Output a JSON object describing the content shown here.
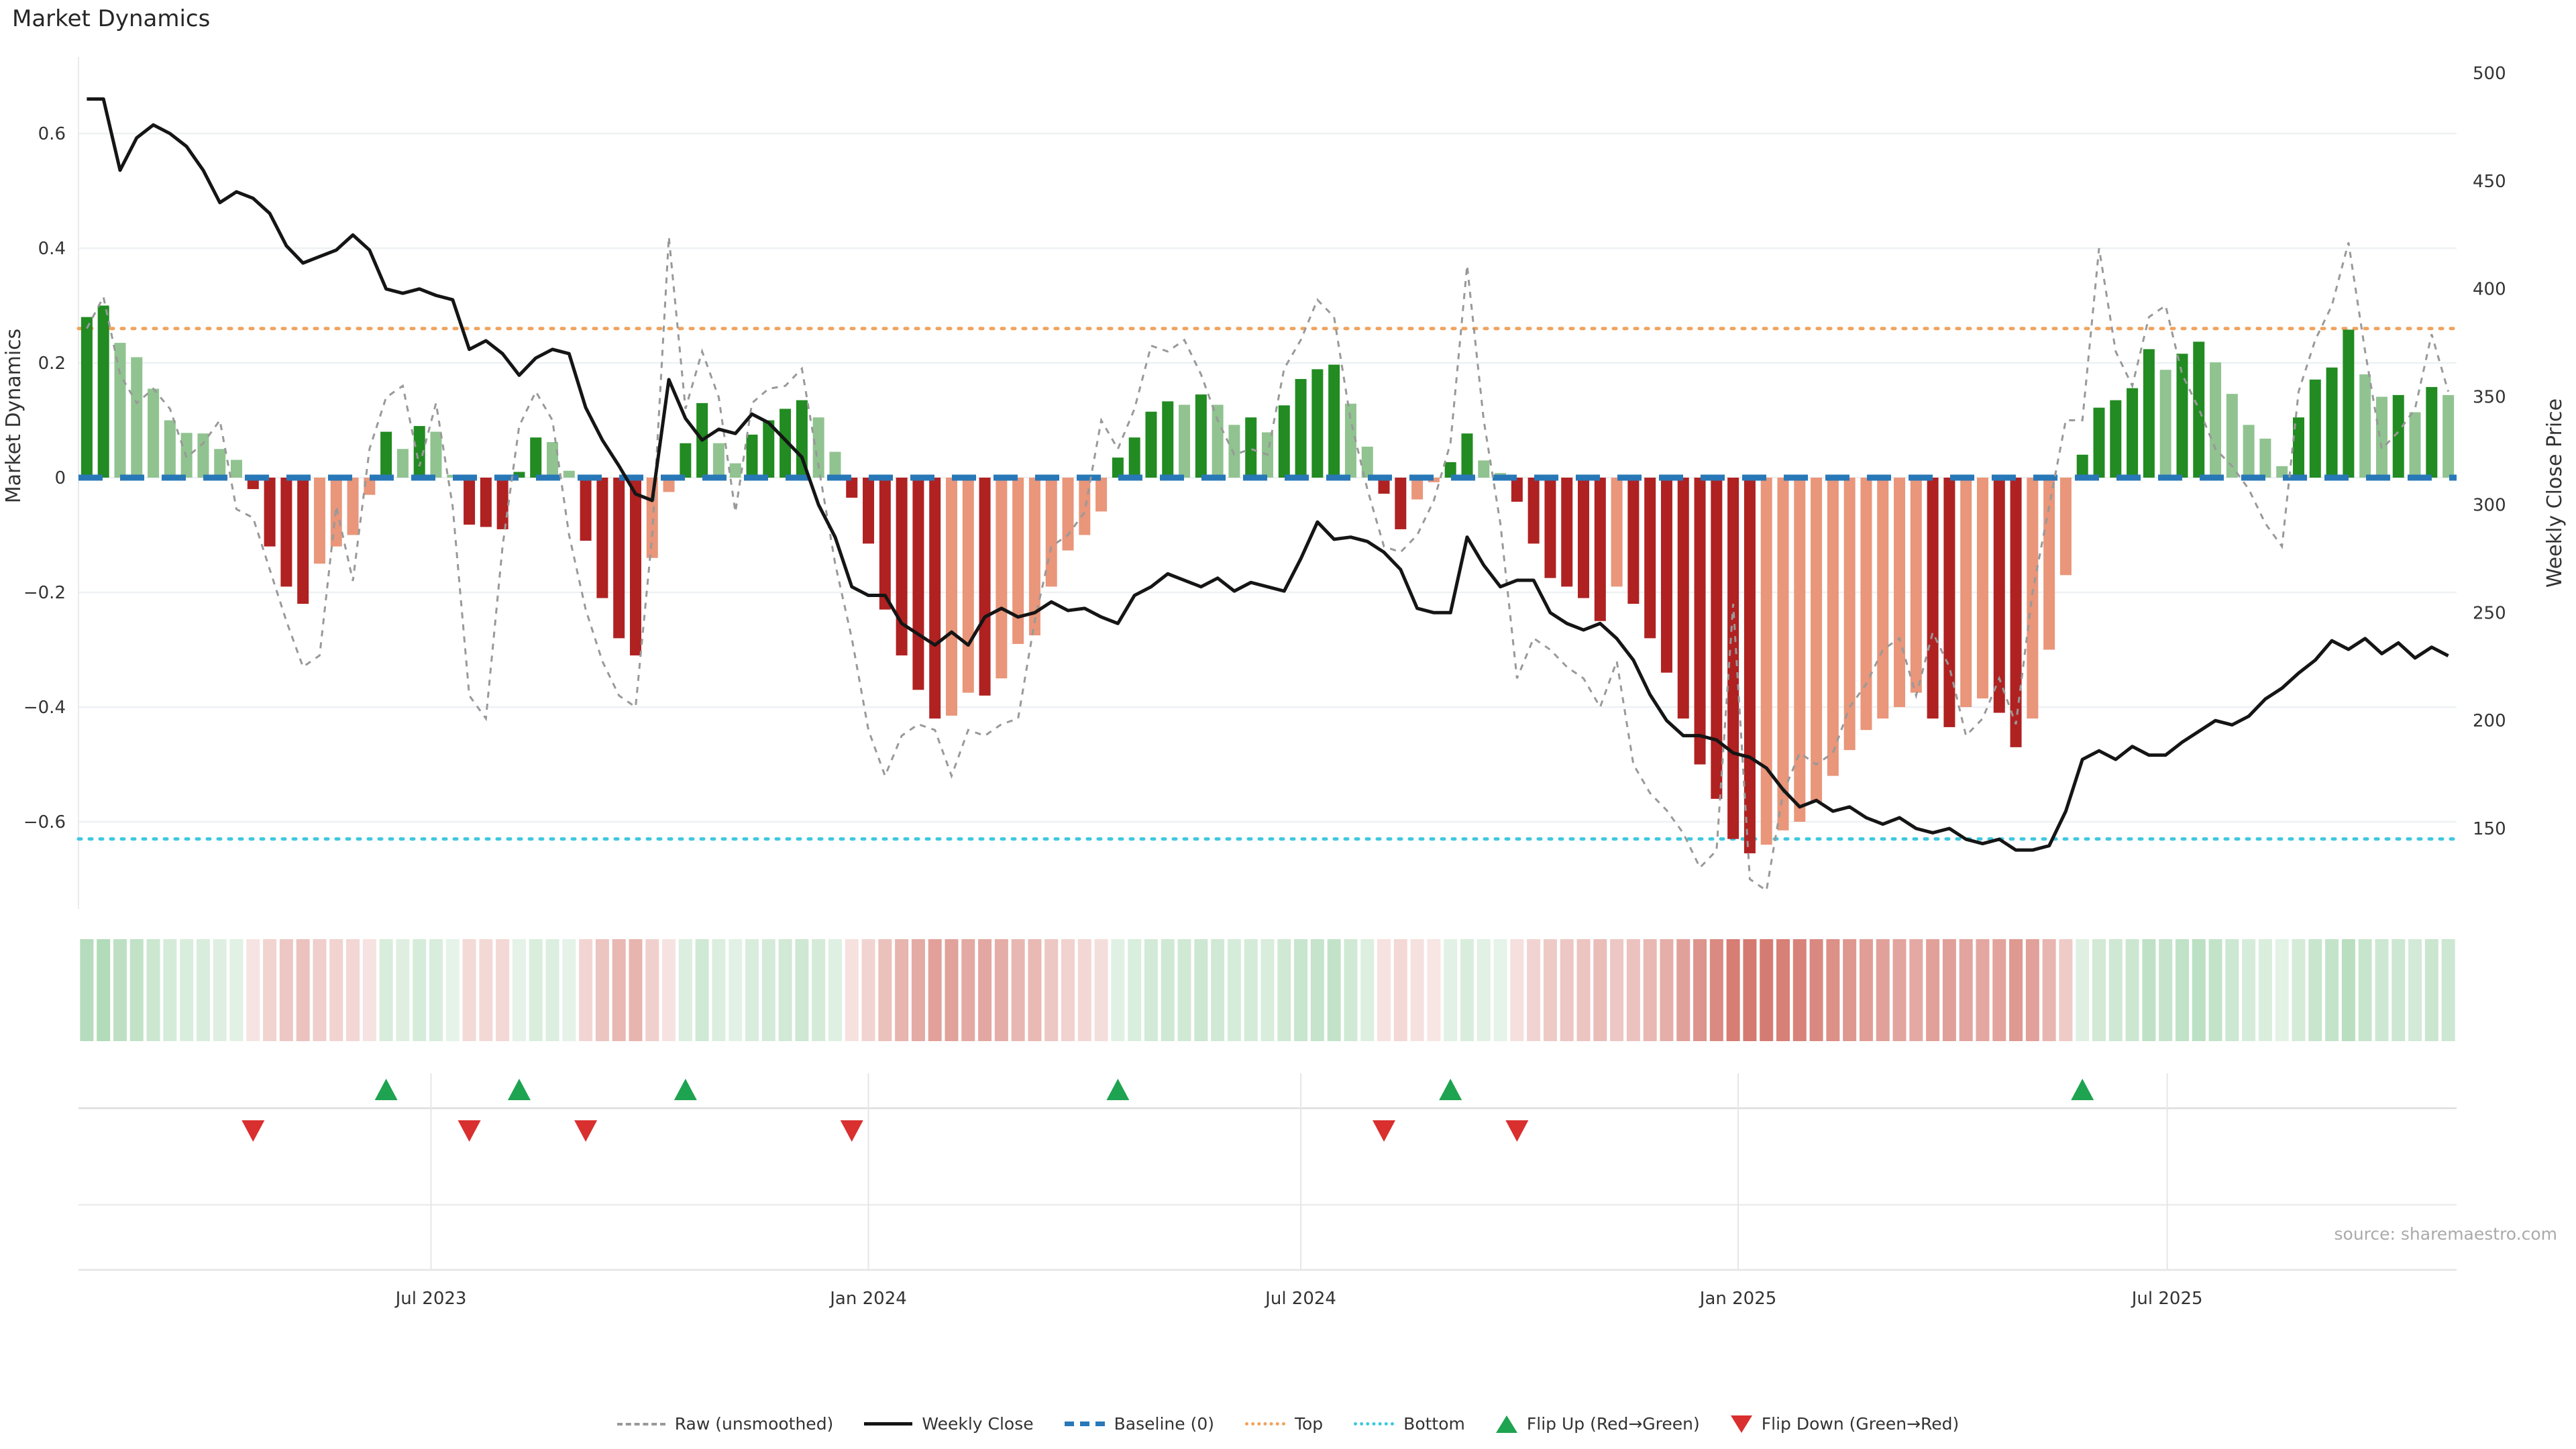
{
  "title": "Market Dynamics",
  "source": "source: sharemaestro.com",
  "axes": {
    "left_label": "Market Dynamics",
    "right_label": "Weekly Close Price",
    "left_ticks": [
      {
        "label": "0.6",
        "value": 0.6
      },
      {
        "label": "0.4",
        "value": 0.4
      },
      {
        "label": "0.2",
        "value": 0.2
      },
      {
        "label": "0",
        "value": 0
      },
      {
        "label": "−0.2",
        "value": -0.2
      },
      {
        "label": "−0.4",
        "value": -0.4
      },
      {
        "label": "−0.6",
        "value": -0.6
      }
    ],
    "right_ticks": [
      {
        "label": "500",
        "value": 500
      },
      {
        "label": "450",
        "value": 450
      },
      {
        "label": "400",
        "value": 400
      },
      {
        "label": "350",
        "value": 350
      },
      {
        "label": "300",
        "value": 300
      },
      {
        "label": "250",
        "value": 250
      },
      {
        "label": "200",
        "value": 200
      },
      {
        "label": "150",
        "value": 150
      }
    ],
    "x_ticks": [
      {
        "label": "Jul 2023",
        "week": 21.2
      },
      {
        "label": "Jan 2024",
        "week": 47.5
      },
      {
        "label": "Jul 2024",
        "week": 73.5
      },
      {
        "label": "Jan 2025",
        "week": 99.8
      },
      {
        "label": "Jul 2025",
        "week": 125.6
      }
    ]
  },
  "legend": {
    "items": [
      {
        "label": "Raw (unsmoothed)",
        "type": "raw"
      },
      {
        "label": "Weekly Close",
        "type": "close"
      },
      {
        "label": "Baseline (0)",
        "type": "baseline"
      },
      {
        "label": "Top",
        "type": "top"
      },
      {
        "label": "Bottom",
        "type": "bottom"
      },
      {
        "label": "Flip Up (Red→Green)",
        "type": "flip-up"
      },
      {
        "label": "Flip Down (Green→Red)",
        "type": "flip-down"
      }
    ]
  },
  "colors": {
    "bar_up_strong": "#228b22",
    "bar_up_weak": "#90c390",
    "bar_down_strong": "#b02121",
    "bar_down_weak": "#e9967a",
    "close_line": "#151515",
    "raw_line": "#999999",
    "baseline": "#2878b8",
    "top_line": "#f0a35e",
    "bottom_line": "#3fc8de",
    "flip_up": "#1ea350",
    "flip_down": "#d92f2f",
    "heat_up": "#2f9e44",
    "heat_down": "#c0392b",
    "grid": "#eef1f4",
    "panel_line": "#dddddd",
    "tick_text": "#333333"
  },
  "chart_data": {
    "type": "combo",
    "title": "Market Dynamics",
    "x_start_date": "2023-02-06",
    "x_frequency": "weekly",
    "weeks": 143,
    "baseline": 0,
    "top_threshold": 0.26,
    "bottom_threshold": -0.63,
    "left_axis_range": [
      -0.775,
      0.75
    ],
    "right_axis_range": [
      150,
      500
    ],
    "grid": "horizontal-only",
    "legend_position": "bottom-center",
    "series": [
      {
        "name": "Market Dynamics",
        "type": "bar",
        "axis": "left",
        "color_rule": "dark-green rising positive, light-green fading positive, dark-red deepening negative, salmon recovering negative",
        "values": [
          0.28,
          0.3,
          0.235,
          0.21,
          0.155,
          0.1,
          0.078,
          0.077,
          0.05,
          0.031,
          -0.02,
          -0.12,
          -0.19,
          -0.22,
          -0.15,
          -0.12,
          -0.1,
          -0.03,
          0.08,
          0.05,
          0.09,
          0.08,
          0.005,
          -0.082,
          -0.086,
          -0.09,
          0.01,
          0.07,
          0.062,
          0.012,
          -0.11,
          -0.21,
          -0.28,
          -0.31,
          -0.14,
          -0.025,
          0.06,
          0.13,
          0.06,
          0.025,
          0.075,
          0.1,
          0.12,
          0.135,
          0.105,
          0.045,
          -0.035,
          -0.115,
          -0.23,
          -0.31,
          -0.37,
          -0.42,
          -0.415,
          -0.375,
          -0.38,
          -0.35,
          -0.29,
          -0.275,
          -0.19,
          -0.127,
          -0.1,
          -0.059,
          0.035,
          0.07,
          0.115,
          0.133,
          0.127,
          0.145,
          0.127,
          0.092,
          0.105,
          0.079,
          0.126,
          0.172,
          0.189,
          0.197,
          0.129,
          0.054,
          -0.028,
          -0.09,
          -0.038,
          -0.008,
          0.027,
          0.077,
          0.03,
          0.008,
          -0.042,
          -0.115,
          -0.175,
          -0.19,
          -0.21,
          -0.25,
          -0.19,
          -0.22,
          -0.28,
          -0.34,
          -0.42,
          -0.5,
          -0.56,
          -0.63,
          -0.655,
          -0.64,
          -0.615,
          -0.6,
          -0.565,
          -0.52,
          -0.475,
          -0.44,
          -0.42,
          -0.4,
          -0.375,
          -0.42,
          -0.435,
          -0.4,
          -0.385,
          -0.41,
          -0.47,
          -0.42,
          -0.3,
          -0.17,
          0.04,
          0.122,
          0.135,
          0.156,
          0.224,
          0.188,
          0.216,
          0.237,
          0.201,
          0.146,
          0.092,
          0.068,
          0.02,
          0.105,
          0.171,
          0.192,
          0.258,
          0.18,
          0.141,
          0.144,
          0.114,
          0.158,
          0.144
        ]
      },
      {
        "name": "Raw (unsmoothed)",
        "type": "line",
        "style": "dashed",
        "axis": "left",
        "values": [
          0.26,
          0.315,
          0.18,
          0.13,
          0.155,
          0.12,
          0.035,
          0.06,
          0.1,
          -0.055,
          -0.07,
          -0.16,
          -0.25,
          -0.33,
          -0.31,
          -0.05,
          -0.18,
          0.05,
          0.14,
          0.16,
          0.02,
          0.13,
          -0.05,
          -0.38,
          -0.42,
          -0.12,
          0.09,
          0.15,
          0.1,
          -0.1,
          -0.23,
          -0.32,
          -0.38,
          -0.4,
          -0.1,
          0.42,
          0.12,
          0.22,
          0.14,
          -0.06,
          0.13,
          0.155,
          0.16,
          0.19,
          0.02,
          -0.15,
          -0.28,
          -0.44,
          -0.52,
          -0.45,
          -0.43,
          -0.44,
          -0.52,
          -0.44,
          -0.45,
          -0.43,
          -0.42,
          -0.25,
          -0.12,
          -0.1,
          -0.06,
          0.1,
          0.05,
          0.12,
          0.23,
          0.22,
          0.24,
          0.18,
          0.1,
          0.04,
          0.05,
          0.04,
          0.19,
          0.24,
          0.31,
          0.28,
          0.1,
          -0.02,
          -0.12,
          -0.13,
          -0.1,
          -0.04,
          0.06,
          0.37,
          0.1,
          -0.08,
          -0.35,
          -0.28,
          -0.3,
          -0.33,
          -0.35,
          -0.4,
          -0.32,
          -0.5,
          -0.55,
          -0.58,
          -0.62,
          -0.68,
          -0.65,
          -0.22,
          -0.7,
          -0.72,
          -0.55,
          -0.48,
          -0.5,
          -0.48,
          -0.4,
          -0.36,
          -0.3,
          -0.28,
          -0.38,
          -0.27,
          -0.33,
          -0.45,
          -0.42,
          -0.35,
          -0.43,
          -0.2,
          -0.05,
          0.1,
          0.1,
          0.4,
          0.22,
          0.16,
          0.28,
          0.3,
          0.18,
          0.12,
          0.05,
          0.02,
          -0.02,
          -0.08,
          -0.12,
          0.15,
          0.24,
          0.3,
          0.41,
          0.22,
          0.05,
          0.08,
          0.12,
          0.25,
          0.15
        ]
      },
      {
        "name": "Weekly Close",
        "type": "line",
        "style": "solid",
        "axis": "right",
        "values": [
          488,
          488,
          455,
          470,
          476,
          472,
          466,
          455,
          440,
          445,
          442,
          435,
          420,
          412,
          415,
          418,
          425,
          418,
          400,
          398,
          400,
          397,
          395,
          372,
          376,
          370,
          360,
          368,
          372,
          370,
          345,
          330,
          318,
          305,
          302,
          358,
          340,
          330,
          335,
          333,
          342,
          338,
          330,
          322,
          300,
          285,
          262,
          258,
          258,
          245,
          240,
          235,
          241,
          235,
          248,
          252,
          248,
          250,
          255,
          251,
          252,
          248,
          245,
          258,
          262,
          268,
          265,
          262,
          266,
          260,
          264,
          262,
          260,
          275,
          292,
          284,
          285,
          283,
          278,
          270,
          252,
          250,
          250,
          285,
          272,
          262,
          265,
          265,
          250,
          245,
          242,
          245,
          238,
          228,
          212,
          200,
          193,
          193,
          191,
          185,
          183,
          178,
          168,
          160,
          163,
          158,
          160,
          155,
          152,
          155,
          150,
          148,
          150,
          145,
          143,
          145,
          140,
          140,
          142,
          158,
          182,
          186,
          182,
          188,
          184,
          184,
          190,
          195,
          200,
          198,
          202,
          210,
          215,
          222,
          228,
          237,
          233,
          238,
          231,
          236,
          229,
          234,
          230
        ]
      }
    ],
    "heatmap_strip": "same values as Market Dynamics bars, green/red opacity by magnitude",
    "flip_up_weeks": [
      18,
      26,
      36,
      62,
      82,
      120
    ],
    "flip_down_weeks": [
      10,
      23,
      30,
      46,
      78,
      86
    ]
  }
}
